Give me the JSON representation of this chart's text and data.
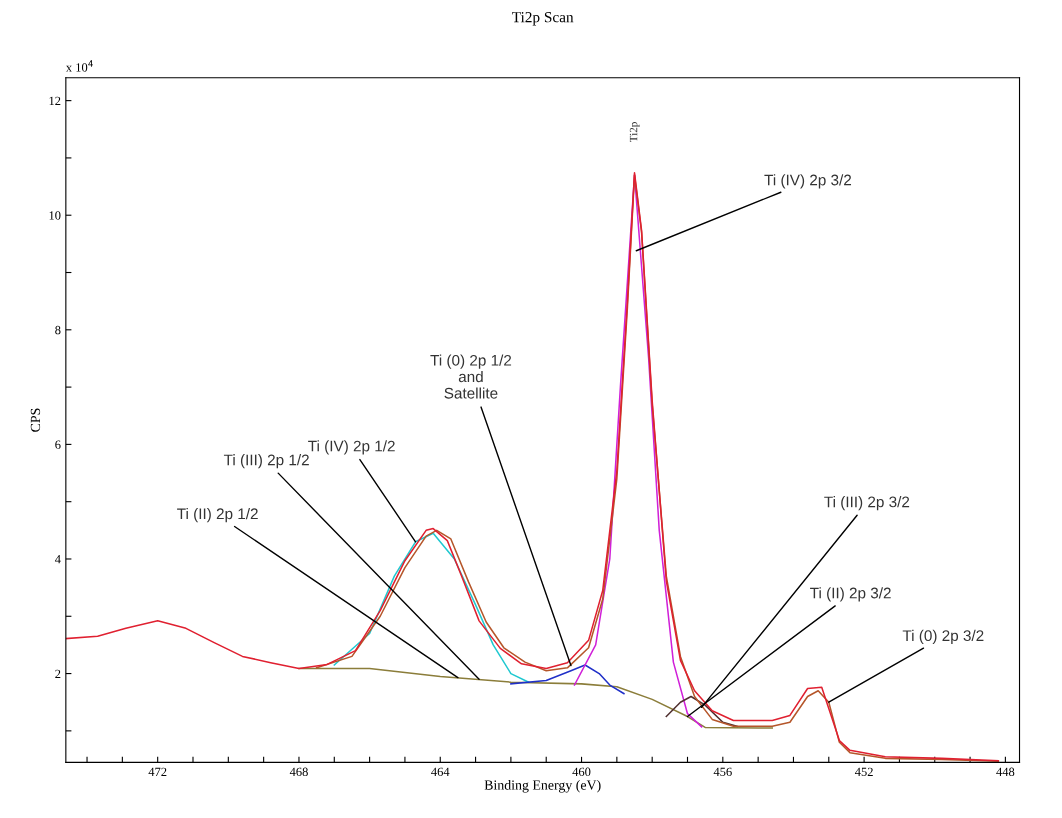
{
  "chart_data": {
    "type": "line",
    "title": "Ti2p Scan",
    "xlabel": "Binding Energy (eV)",
    "ylabel": "CPS",
    "xlim": [
      474.6,
      447.6
    ],
    "ylim": [
      0.45,
      12.4
    ],
    "xticks": [
      {
        "value": 474,
        "label": null
      },
      {
        "value": 473,
        "label": null
      },
      472,
      {
        "value": 471,
        "label": null
      },
      {
        "value": 470,
        "label": null
      },
      {
        "value": 469,
        "label": null
      },
      468,
      {
        "value": 467,
        "label": null
      },
      {
        "value": 466,
        "label": null
      },
      {
        "value": 465,
        "label": null
      },
      464,
      {
        "value": 463,
        "label": null
      },
      {
        "value": 462,
        "label": null
      },
      {
        "value": 461,
        "label": null
      },
      460,
      {
        "value": 459,
        "label": null
      },
      {
        "value": 458,
        "label": null
      },
      {
        "value": 457,
        "label": null
      },
      456,
      {
        "value": 455,
        "label": null
      },
      {
        "value": 454,
        "label": null
      },
      {
        "value": 453,
        "label": null
      },
      452,
      {
        "value": 451,
        "label": null
      },
      {
        "value": 450,
        "label": null
      },
      {
        "value": 449,
        "label": null
      },
      448
    ],
    "yticks": [
      {
        "value": 1,
        "label": null
      },
      2,
      {
        "value": 3,
        "label": null
      },
      4,
      {
        "value": 5,
        "label": null
      },
      6,
      {
        "value": 7,
        "label": null
      },
      8,
      {
        "value": 9,
        "label": null
      },
      10,
      {
        "value": 11,
        "label": null
      },
      12
    ],
    "grid": false,
    "legend": false,
    "marker": "none",
    "line_style": "solid",
    "series": [
      {
        "color": "#8b7d3a",
        "x": [
          468,
          466,
          464,
          462,
          460,
          459,
          458,
          457,
          456.5,
          455,
          454.6
        ],
        "values": [
          2.09,
          2.09,
          1.95,
          1.85,
          1.82,
          1.77,
          1.55,
          1.25,
          1.06,
          1.05,
          1.05
        ]
      },
      {
        "color": "#20c8d0",
        "x": [
          467,
          466,
          465.3,
          464.7,
          464.2,
          463.6,
          463,
          462.5,
          462,
          461.5
        ],
        "values": [
          2.15,
          2.7,
          3.7,
          4.3,
          4.45,
          4.0,
          3.2,
          2.5,
          2.0,
          1.85
        ]
      },
      {
        "color": "#2030c8",
        "x": [
          462,
          461,
          460.3,
          459.9,
          459.5,
          459.2,
          458.8
        ],
        "values": [
          1.82,
          1.88,
          2.05,
          2.15,
          2.0,
          1.8,
          1.65
        ]
      },
      {
        "color": "#d020d8",
        "x": [
          460.2,
          459.6,
          459.2,
          458.9,
          458.5,
          458.1,
          457.8,
          457.4,
          457.0,
          456.6
        ],
        "values": [
          1.8,
          2.5,
          4.0,
          7.0,
          10.7,
          7.5,
          4.5,
          2.2,
          1.3,
          1.07
        ]
      },
      {
        "color": "#503030",
        "x": [
          457.6,
          457.2,
          456.9,
          456.5,
          456,
          455.6
        ],
        "values": [
          1.25,
          1.5,
          1.6,
          1.45,
          1.15,
          1.08
        ]
      },
      {
        "color": "#b5562a",
        "x": [
          467.5,
          466.5,
          465.7,
          465,
          464.4,
          464.1,
          463.7,
          463.2,
          462.7,
          462.2,
          461.6,
          461,
          460.4,
          459.8,
          459.4,
          459,
          458.7,
          458.5,
          458.3,
          458,
          457.6,
          457.2,
          456.8,
          456.3,
          455.7,
          454.6,
          454.1,
          453.6,
          453.3,
          453,
          452.7,
          452.4,
          451.4,
          449.8,
          448.2
        ],
        "values": [
          2.1,
          2.3,
          3.0,
          3.85,
          4.4,
          4.5,
          4.35,
          3.6,
          2.9,
          2.45,
          2.2,
          2.05,
          2.1,
          2.45,
          3.3,
          5.4,
          8.4,
          10.7,
          9.7,
          6.7,
          3.7,
          2.3,
          1.6,
          1.2,
          1.08,
          1.08,
          1.15,
          1.6,
          1.7,
          1.5,
          0.8,
          0.62,
          0.52,
          0.5,
          0.47
        ]
      },
      {
        "color": "#e02030",
        "x": [
          474.6,
          473.7,
          472.9,
          472,
          471.2,
          470.4,
          469.6,
          468.8,
          468,
          467.2,
          466.4,
          465.7,
          465,
          464.4,
          464.2,
          463.8,
          463.4,
          462.9,
          462.3,
          461.7,
          461,
          460.4,
          459.8,
          459.4,
          459,
          458.7,
          458.5,
          458.3,
          458,
          457.6,
          457.2,
          456.8,
          456.3,
          455.7,
          454.6,
          454.1,
          453.6,
          453.2,
          452.7,
          452.4,
          451.4,
          449.8,
          448.2
        ],
        "values": [
          2.61,
          2.65,
          2.79,
          2.92,
          2.79,
          2.54,
          2.3,
          2.19,
          2.09,
          2.16,
          2.4,
          3.1,
          3.97,
          4.5,
          4.53,
          4.32,
          3.71,
          2.92,
          2.44,
          2.17,
          2.09,
          2.19,
          2.58,
          3.45,
          5.54,
          8.51,
          10.74,
          9.73,
          6.76,
          3.62,
          2.23,
          1.7,
          1.35,
          1.18,
          1.18,
          1.27,
          1.74,
          1.76,
          0.83,
          0.66,
          0.55,
          0.52,
          0.48
        ]
      }
    ],
    "annotations": [
      "x 10$^{4}$",
      {
        "text": "Ti2p",
        "x": 458.5,
        "y": 10.74
      },
      {
        "text": "Ti (IV) 2p 3/2",
        "x": 458.45,
        "y": 9.38
      },
      {
        "text": "Ti (0) 2p 1/2\nand\nSatellite",
        "x": 460.3,
        "y": 2.14
      },
      {
        "text": "Ti (IV) 2p 1/2",
        "x": 464.7,
        "y": 4.3
      },
      {
        "text": "Ti (III) 2p 1/2",
        "x": 462.9,
        "y": 1.9
      },
      {
        "text": "Ti (II) 2p 1/2",
        "x": 463.5,
        "y": 1.93
      },
      {
        "text": "Ti (III) 2p 3/2",
        "x": 456.6,
        "y": 1.41
      },
      {
        "text": "Ti (II) 2p 3/2",
        "x": 457.0,
        "y": 1.25
      },
      {
        "text": "Ti (0) 2p 3/2",
        "x": 453.0,
        "y": 1.5
      }
    ]
  }
}
